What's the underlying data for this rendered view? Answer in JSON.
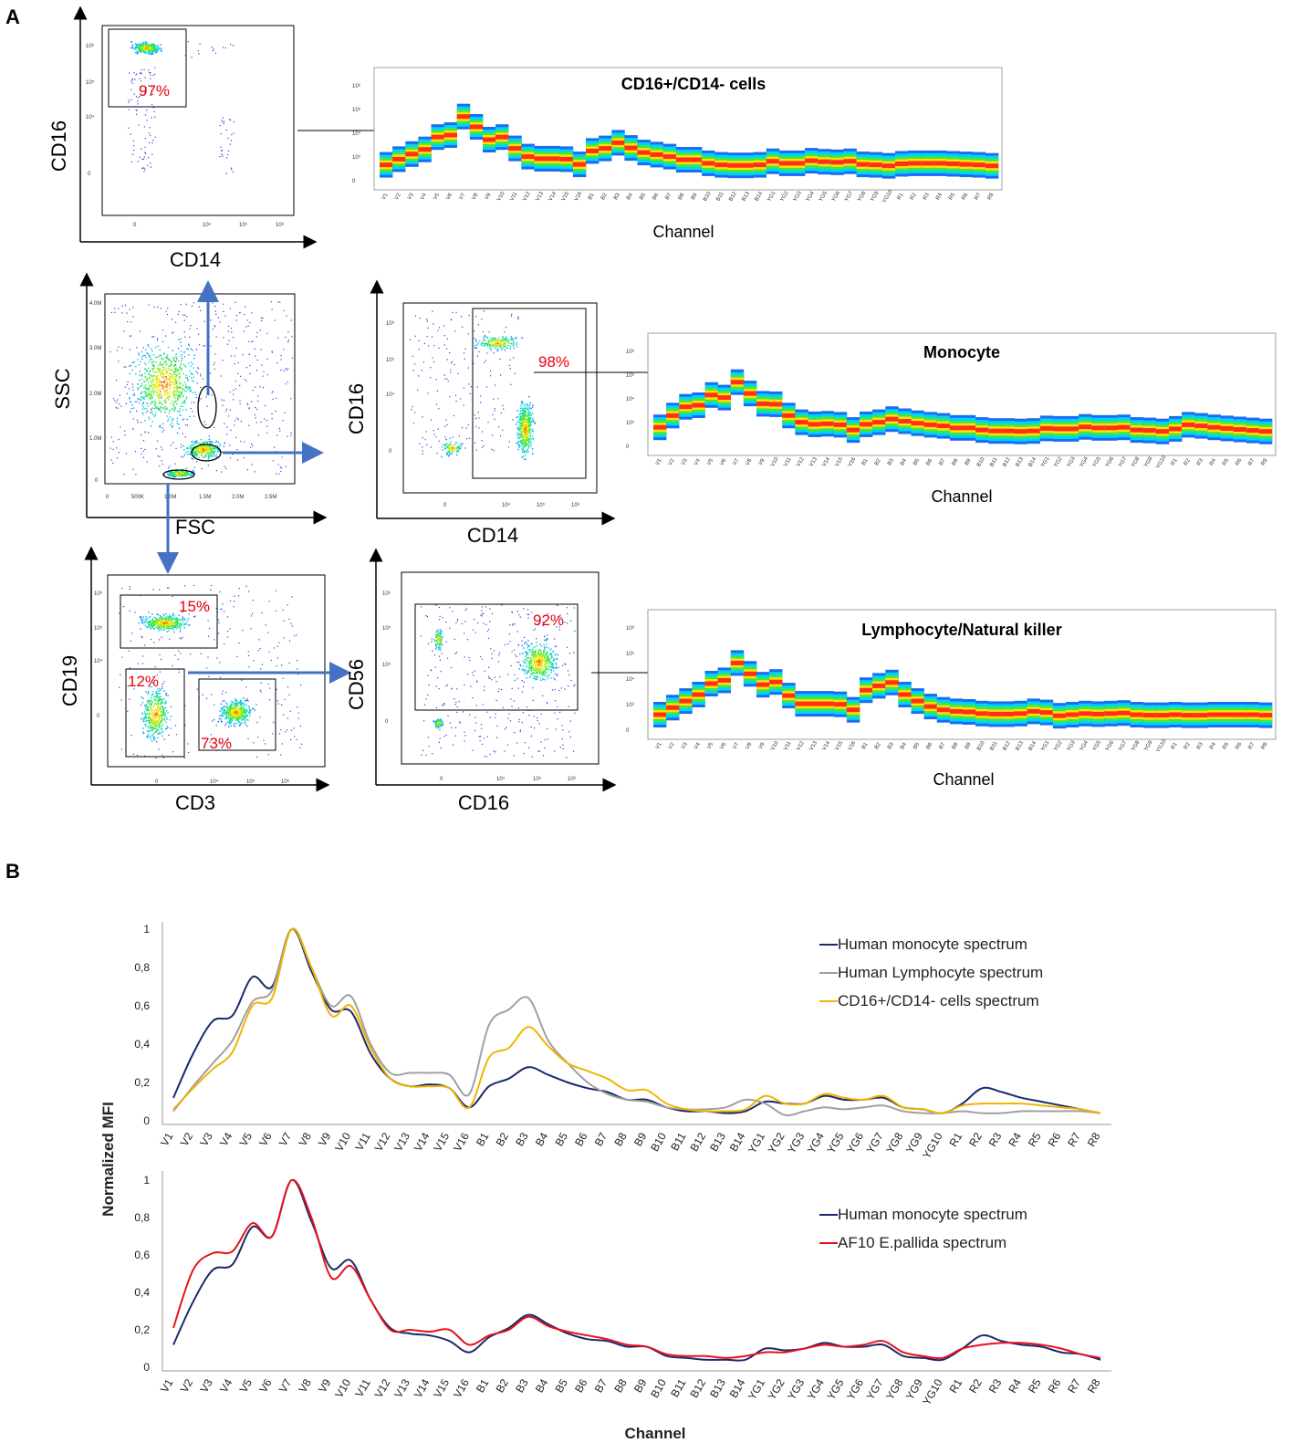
{
  "panel_a": {
    "label": "A",
    "channel_label": "Channel",
    "dot_plots": [
      {
        "id": "cd16_cd14_top",
        "x_label": "CD14",
        "y_label": "CD16",
        "gate_pct": "97%"
      },
      {
        "id": "fsc_ssc",
        "x_label": "FSC",
        "y_label": "SSC",
        "x_ticks": [
          "0",
          "500K",
          "1.0M",
          "1.5M",
          "2.0M",
          "2.5M"
        ],
        "y_ticks": [
          "0",
          "1.0M",
          "2.0M",
          "3.0M",
          "4.0M"
        ]
      },
      {
        "id": "cd16_cd14_mid",
        "x_label": "CD14",
        "y_label": "CD16",
        "gate_pct": "98%"
      },
      {
        "id": "cd19_cd3",
        "x_label": "CD3",
        "y_label": "CD19",
        "gate_pcts": [
          "15%",
          "12%",
          "73%"
        ]
      },
      {
        "id": "cd56_cd16",
        "x_label": "CD16",
        "y_label": "CD56",
        "gate_pct": "92%"
      }
    ],
    "log_ticks_x": [
      "0",
      "10⁴",
      "10⁵",
      "10⁶"
    ],
    "log_ticks_y": [
      "0",
      "10⁴",
      "10⁵",
      "10⁶"
    ],
    "spectra_titles": [
      "CD16+/CD14- cells",
      "Monocyte",
      "Lymphocyte/Natural killer"
    ],
    "spectra_y_ticks": [
      "10⁶",
      "10⁵",
      "10⁴",
      "10³",
      "0"
    ],
    "spectra_channels": [
      "V1",
      "V2",
      "V3",
      "V4",
      "V5",
      "V6",
      "V7",
      "V8",
      "V9",
      "V10",
      "V11",
      "V12",
      "V13",
      "V14",
      "V15",
      "V16",
      "B1",
      "B2",
      "B3",
      "B4",
      "B5",
      "B6",
      "B7",
      "B8",
      "B9",
      "B10",
      "B11",
      "B12",
      "B13",
      "B14",
      "YG1",
      "YG2",
      "YG3",
      "YG4",
      "YG5",
      "YG6",
      "YG7",
      "YG8",
      "YG9",
      "YG10",
      "R1",
      "R2",
      "R3",
      "R4",
      "R5",
      "R6",
      "R7",
      "R8"
    ]
  },
  "panel_b": {
    "label": "B",
    "y_label": "Normalized MFI",
    "x_label": "Channel",
    "colors": {
      "monocyte": "#1a2a6c",
      "lymphocyte": "#a0a0a0",
      "cd16": "#f0b400",
      "af10": "#e8121c"
    }
  },
  "chart_data": [
    {
      "type": "line",
      "title": "",
      "xlabel": "",
      "ylabel": "Normalized MFI",
      "ylim": [
        0,
        1
      ],
      "y_ticks": [
        "0",
        "0,2",
        "0,4",
        "0,6",
        "0,8",
        "1"
      ],
      "categories": [
        "V1",
        "V2",
        "V3",
        "V4",
        "V5",
        "V6",
        "V7",
        "V8",
        "V9",
        "V10",
        "V11",
        "V12",
        "V13",
        "V14",
        "V15",
        "V16",
        "B1",
        "B2",
        "B3",
        "B4",
        "B5",
        "B6",
        "B7",
        "B8",
        "B9",
        "B10",
        "B11",
        "B12",
        "B13",
        "B14",
        "YG1",
        "YG2",
        "YG3",
        "YG4",
        "YG5",
        "YG6",
        "YG7",
        "YG8",
        "YG9",
        "YG10",
        "R1",
        "R2",
        "R3",
        "R4",
        "R5",
        "R6",
        "R7",
        "R8"
      ],
      "series": [
        {
          "name": "Human monocyte spectrum",
          "color": "#1a2a6c",
          "values": [
            0.12,
            0.35,
            0.52,
            0.55,
            0.75,
            0.7,
            1.0,
            0.78,
            0.58,
            0.57,
            0.35,
            0.22,
            0.18,
            0.19,
            0.17,
            0.07,
            0.18,
            0.22,
            0.28,
            0.24,
            0.2,
            0.17,
            0.15,
            0.11,
            0.11,
            0.07,
            0.05,
            0.05,
            0.04,
            0.05,
            0.1,
            0.09,
            0.09,
            0.13,
            0.11,
            0.11,
            0.12,
            0.07,
            0.06,
            0.04,
            0.09,
            0.17,
            0.15,
            0.12,
            0.1,
            0.08,
            0.06,
            0.04
          ]
        },
        {
          "name": "Human Lymphocyte spectrum",
          "color": "#a0a0a0",
          "values": [
            0.05,
            0.18,
            0.3,
            0.42,
            0.62,
            0.68,
            1.0,
            0.8,
            0.6,
            0.65,
            0.4,
            0.25,
            0.25,
            0.25,
            0.24,
            0.14,
            0.5,
            0.58,
            0.64,
            0.42,
            0.3,
            0.2,
            0.14,
            0.11,
            0.1,
            0.07,
            0.06,
            0.06,
            0.07,
            0.11,
            0.09,
            0.03,
            0.05,
            0.07,
            0.06,
            0.07,
            0.08,
            0.05,
            0.04,
            0.04,
            0.05,
            0.04,
            0.04,
            0.05,
            0.05,
            0.05,
            0.05,
            0.04
          ]
        },
        {
          "name": "CD16+/CD14- cells spectrum",
          "color": "#f0b400",
          "values": [
            0.06,
            0.17,
            0.27,
            0.36,
            0.6,
            0.64,
            1.0,
            0.8,
            0.55,
            0.6,
            0.38,
            0.22,
            0.18,
            0.18,
            0.17,
            0.07,
            0.33,
            0.38,
            0.49,
            0.39,
            0.3,
            0.26,
            0.22,
            0.16,
            0.16,
            0.09,
            0.06,
            0.05,
            0.05,
            0.06,
            0.13,
            0.09,
            0.09,
            0.14,
            0.12,
            0.11,
            0.13,
            0.07,
            0.06,
            0.04,
            0.08,
            0.09,
            0.09,
            0.09,
            0.08,
            0.07,
            0.06,
            0.04
          ]
        }
      ]
    },
    {
      "type": "line",
      "title": "",
      "xlabel": "Channel",
      "ylabel": "Normalized MFI",
      "ylim": [
        0,
        1
      ],
      "y_ticks": [
        "0",
        "0,2",
        "0,4",
        "0,6",
        "0,8",
        "1"
      ],
      "categories": [
        "V1",
        "V2",
        "V3",
        "V4",
        "V5",
        "V6",
        "V7",
        "V8",
        "V9",
        "V10",
        "V11",
        "V12",
        "V13",
        "V14",
        "V15",
        "V16",
        "B1",
        "B2",
        "B3",
        "B4",
        "B5",
        "B6",
        "B7",
        "B8",
        "B9",
        "B10",
        "B11",
        "B12",
        "B13",
        "B14",
        "YG1",
        "YG2",
        "YG3",
        "YG4",
        "YG5",
        "YG6",
        "YG7",
        "YG8",
        "YG9",
        "YG10",
        "R1",
        "R2",
        "R3",
        "R4",
        "R5",
        "R6",
        "R7",
        "R8"
      ],
      "series": [
        {
          "name": "Human monocyte spectrum",
          "color": "#1a2a6c",
          "values": [
            0.12,
            0.35,
            0.52,
            0.55,
            0.75,
            0.7,
            1.0,
            0.78,
            0.53,
            0.57,
            0.36,
            0.21,
            0.18,
            0.17,
            0.14,
            0.08,
            0.16,
            0.21,
            0.28,
            0.23,
            0.18,
            0.15,
            0.14,
            0.11,
            0.11,
            0.06,
            0.05,
            0.04,
            0.04,
            0.04,
            0.1,
            0.09,
            0.1,
            0.13,
            0.11,
            0.11,
            0.12,
            0.06,
            0.05,
            0.04,
            0.1,
            0.17,
            0.14,
            0.12,
            0.11,
            0.08,
            0.07,
            0.04
          ]
        },
        {
          "name": "AF10 E.pallida spectrum",
          "color": "#e8121c",
          "values": [
            0.21,
            0.52,
            0.61,
            0.62,
            0.77,
            0.7,
            1.0,
            0.8,
            0.48,
            0.54,
            0.36,
            0.2,
            0.2,
            0.19,
            0.2,
            0.12,
            0.17,
            0.2,
            0.27,
            0.22,
            0.19,
            0.17,
            0.15,
            0.12,
            0.11,
            0.07,
            0.06,
            0.06,
            0.05,
            0.06,
            0.08,
            0.08,
            0.1,
            0.12,
            0.11,
            0.12,
            0.14,
            0.08,
            0.06,
            0.05,
            0.1,
            0.12,
            0.13,
            0.13,
            0.12,
            0.1,
            0.07,
            0.05
          ]
        }
      ]
    }
  ]
}
